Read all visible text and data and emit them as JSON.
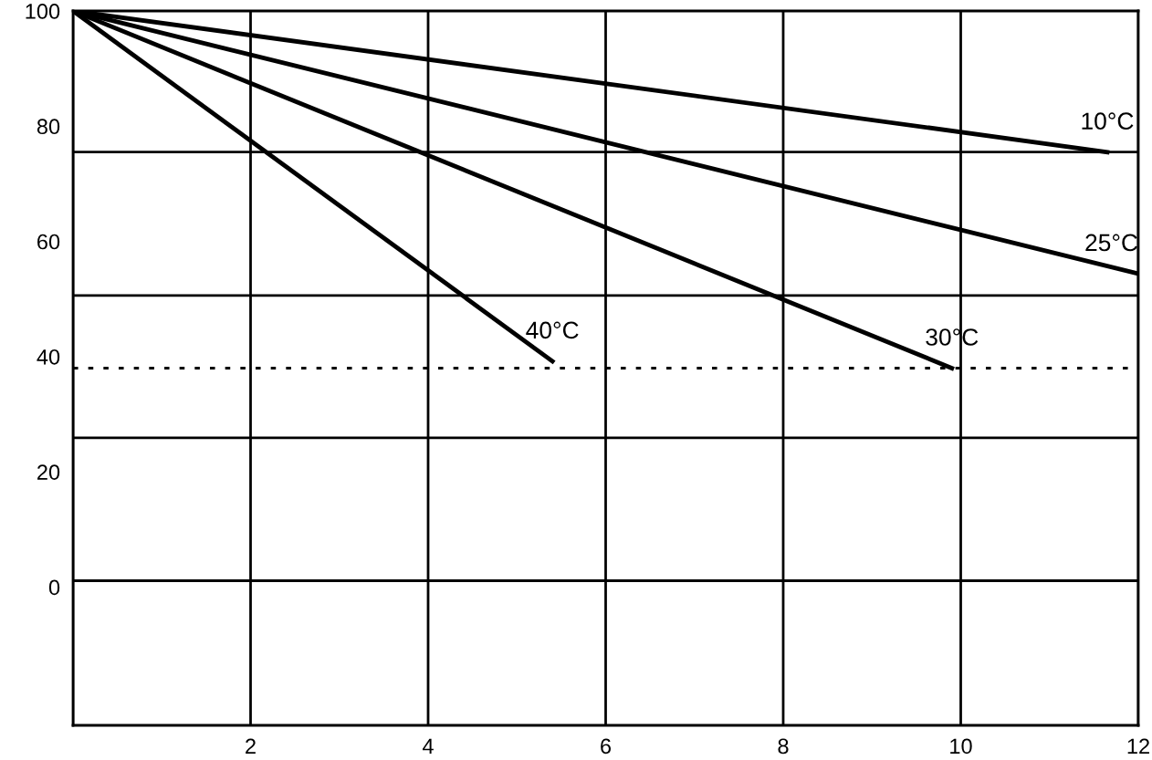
{
  "chart_data": {
    "type": "line",
    "xlim": [
      0,
      12
    ],
    "xticks": [
      {
        "value": 0,
        "label": null
      },
      2,
      4,
      6,
      8,
      10,
      12
    ],
    "ylim": [
      -24,
      100
    ],
    "yticks": [
      0,
      20,
      40,
      60,
      80,
      100
    ],
    "grid": "x",
    "marker": "none",
    "line_style": "solid",
    "series": [
      {
        "name": "10°C",
        "color": "#000000",
        "x": [
          0,
          11.65
        ],
        "values": [
          100,
          75.5
        ]
      },
      {
        "name": "25°C",
        "color": "#000000",
        "x": [
          0,
          12
        ],
        "values": [
          100,
          54.4
        ]
      },
      {
        "name": "30°C",
        "color": "#000000",
        "x": [
          0,
          9.9
        ],
        "values": [
          100,
          38.0
        ]
      },
      {
        "name": "40°C",
        "color": "#000000",
        "x": [
          0,
          5.4
        ],
        "values": [
          100,
          39.2
        ]
      }
    ],
    "ref_lines": [
      {
        "axis": "y",
        "value": 75.5,
        "color": "#000000",
        "line_style": "solid"
      },
      {
        "axis": "y",
        "value": 50.6,
        "color": "#000000",
        "line_style": "solid"
      },
      {
        "axis": "y",
        "value": 25.9,
        "color": "#000000",
        "line_style": "solid"
      },
      {
        "axis": "y",
        "value": 1.1,
        "color": "#000000",
        "line_style": "solid"
      },
      {
        "axis": "y",
        "value": 38.0,
        "color": "#000000",
        "line_style": "dotted"
      }
    ]
  }
}
